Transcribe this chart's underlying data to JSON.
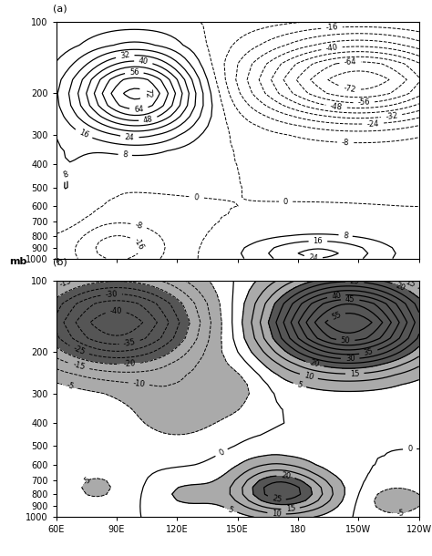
{
  "lon_labels": [
    "60E",
    "90E",
    "120E",
    "150E",
    "180",
    "150W",
    "120W"
  ],
  "lon_values": [
    60,
    90,
    120,
    150,
    180,
    210,
    240
  ],
  "pressure_levels": [
    100,
    200,
    300,
    400,
    500,
    600,
    700,
    800,
    900,
    1000
  ],
  "panel_a_label": "(a)",
  "panel_b_label": "(b)",
  "ylabel": "mb",
  "figsize": [
    4.74,
    6.1
  ],
  "dpi": 100,
  "bg_color": "#ffffff"
}
